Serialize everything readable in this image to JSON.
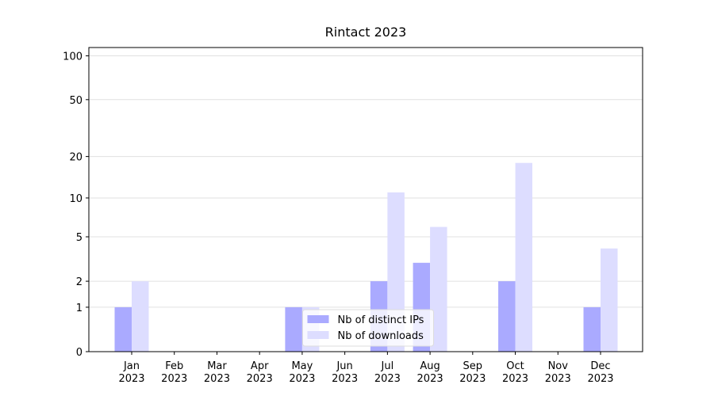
{
  "chart_data": {
    "type": "bar",
    "title": "Rintact 2023",
    "categories": [
      "Jan\n2023",
      "Feb\n2023",
      "Mar\n2023",
      "Apr\n2023",
      "May\n2023",
      "Jun\n2023",
      "Jul\n2023",
      "Aug\n2023",
      "Sep\n2023",
      "Oct\n2023",
      "Nov\n2023",
      "Dec\n2023"
    ],
    "series": [
      {
        "name": "Nb of distinct IPs",
        "color": "#aaaaff",
        "values": [
          1,
          0,
          0,
          0,
          1,
          0,
          2,
          3,
          0,
          2,
          0,
          1
        ]
      },
      {
        "name": "Nb of downloads",
        "color": "#ddddff",
        "values": [
          2,
          0,
          0,
          0,
          1,
          0,
          11,
          6,
          0,
          18,
          0,
          4
        ]
      }
    ],
    "yscale": "symlog",
    "ylim": [
      0,
      114
    ],
    "yticks": [
      0,
      1,
      2,
      5,
      10,
      20,
      50,
      100
    ],
    "grid": true,
    "legend": "lower center"
  }
}
